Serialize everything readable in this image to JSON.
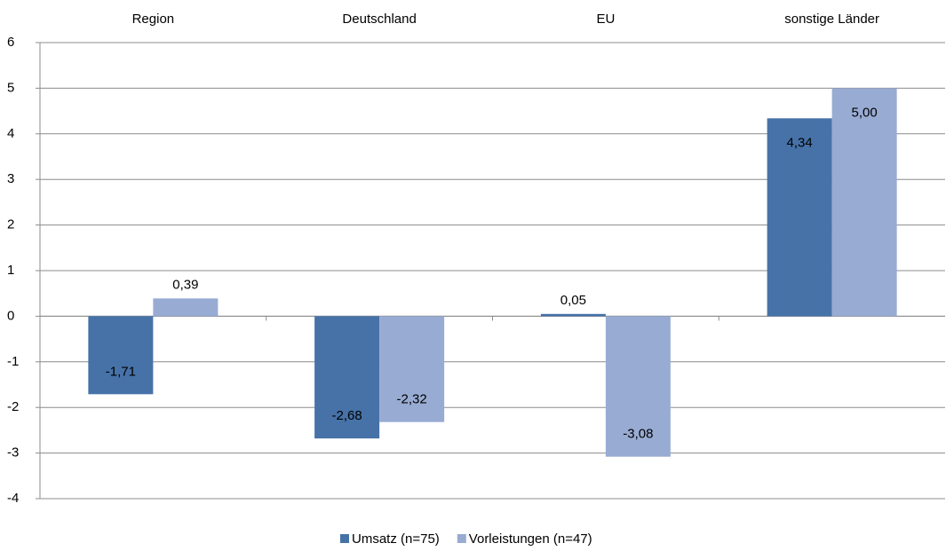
{
  "chart_data": {
    "type": "bar",
    "categories": [
      "Region",
      "Deutschland",
      "EU",
      "sonstige Länder"
    ],
    "series": [
      {
        "name": "Umsatz (n=75)",
        "color": "#4672a8",
        "values": [
          -1.71,
          -2.68,
          0.05,
          4.34
        ],
        "value_labels": [
          "-1,71",
          "-2,68",
          "0,05",
          "4,34"
        ]
      },
      {
        "name": "Vorleistungen (n=47)",
        "color": "#98abd3",
        "values": [
          0.39,
          -2.32,
          -3.08,
          5.0
        ],
        "value_labels": [
          "0,39",
          "-2,32",
          "-3,08",
          "5,00"
        ]
      }
    ],
    "ylim": [
      -4,
      6
    ],
    "yticks": [
      -4,
      -3,
      -2,
      -1,
      0,
      1,
      2,
      3,
      4,
      5,
      6
    ],
    "grid": true,
    "legend": "bottom"
  }
}
